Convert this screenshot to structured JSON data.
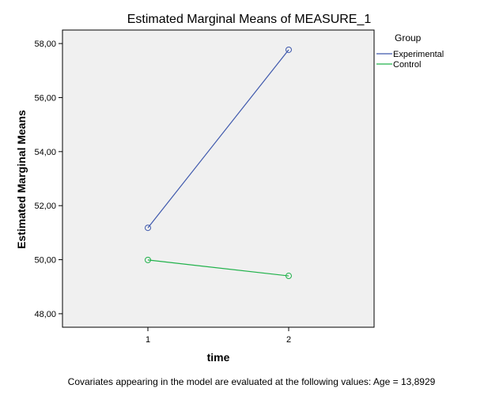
{
  "chart_data": {
    "type": "line",
    "title": "Estimated Marginal Means of MEASURE_1",
    "xlabel": "time",
    "ylabel": "Estimated Marginal Means",
    "categories": [
      "1",
      "2"
    ],
    "ylim": [
      47.5,
      58.5
    ],
    "yticks": [
      48,
      50,
      52,
      54,
      56,
      58
    ],
    "ytick_labels": [
      "48,00",
      "50,00",
      "52,00",
      "54,00",
      "56,00",
      "58,00"
    ],
    "legend_title": "Group",
    "legend_position": "top-right outside",
    "grid": false,
    "background": "#f0f0f0",
    "series": [
      {
        "name": "Experimental",
        "color": "#3e58ac",
        "values": [
          51.18,
          57.77
        ]
      },
      {
        "name": "Control",
        "color": "#21b24b",
        "values": [
          49.99,
          49.4
        ]
      }
    ],
    "footnote": "Covariates appearing in the model are evaluated at the following values: Age = 13,8929"
  }
}
